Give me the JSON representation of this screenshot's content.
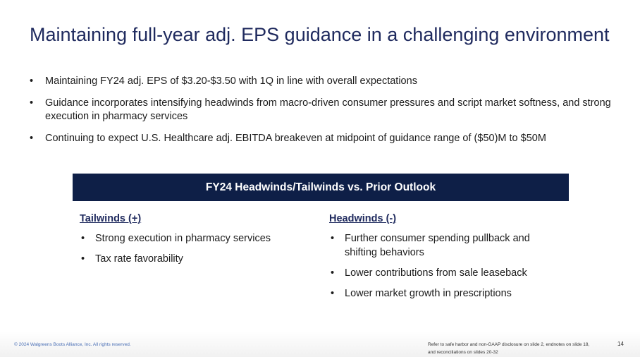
{
  "title": "Maintaining full-year adj. EPS guidance in a challenging environment",
  "bullets": [
    "Maintaining FY24 adj. EPS of $3.20-$3.50 with 1Q in line with overall expectations",
    "Guidance incorporates intensifying headwinds from macro-driven consumer pressures and script market softness, and strong execution in pharmacy services",
    "Continuing to expect U.S. Healthcare adj. EBITDA breakeven at midpoint of guidance range of ($50)M to $50M"
  ],
  "banner": "FY24 Headwinds/Tailwinds vs. Prior Outlook",
  "tailwinds": {
    "heading": "Tailwinds (+)",
    "items": [
      "Strong execution in pharmacy services",
      "Tax rate favorability"
    ]
  },
  "headwinds": {
    "heading": "Headwinds (-)",
    "items": [
      "Further consumer spending pullback and shifting behaviors",
      "Lower contributions from sale leaseback",
      "Lower market growth in prescriptions"
    ]
  },
  "footer": {
    "copyright": "© 2024 Walgreens Boots Alliance, Inc. All rights reserved.",
    "disclaimer": "Refer to safe harbor and non-GAAP disclosure on slide 2, endnotes on slide 18, and reconciliations on slides 20-32",
    "page": "14"
  }
}
